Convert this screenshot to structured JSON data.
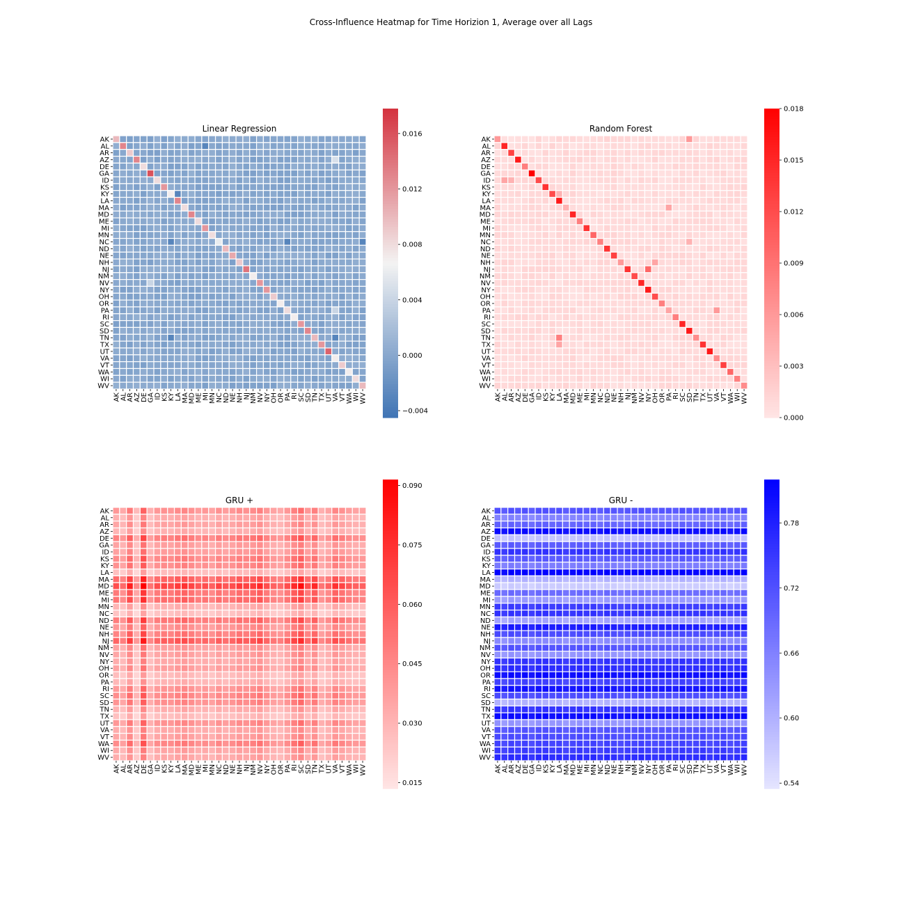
{
  "figure": {
    "title": "Cross-Influence Heatmap for Time Horizion 1, Average over all Lags"
  },
  "colors": {
    "cell_border": "#ffffff",
    "diverging_low": "#3f74b4",
    "diverging_mid": "#f3f3f3",
    "diverging_high": "#d4323e",
    "red_low": "#ffe5e5",
    "red_high": "#ff0000",
    "blue_low": "#e5e5ff",
    "blue_high": "#0000ff"
  },
  "chart_data": [
    {
      "type": "heatmap",
      "id": "lr",
      "title": "Linear Regression",
      "colormap": "diverging-blue-white-red",
      "vmin": -0.0045,
      "vmax": 0.0178,
      "colorbar_ticks": [
        -0.004,
        0.0,
        0.004,
        0.008,
        0.012,
        0.016
      ],
      "colorbar_tick_labels": [
        "−0.004",
        "0.000",
        "0.004",
        "0.008",
        "0.012",
        "0.016"
      ],
      "labels": [
        "AK",
        "AL",
        "AR",
        "AZ",
        "DE",
        "GA",
        "ID",
        "KS",
        "KY",
        "LA",
        "MA",
        "MD",
        "ME",
        "MI",
        "MN",
        "NC",
        "ND",
        "NE",
        "NH",
        "NJ",
        "NM",
        "NV",
        "NY",
        "OH",
        "OR",
        "PA",
        "RI",
        "SC",
        "SD",
        "TN",
        "TX",
        "UT",
        "VA",
        "VT",
        "WA",
        "WI",
        "WV"
      ],
      "pattern": "diagonal-dominant",
      "base_value": 0.0,
      "diagonal": [
        0.01,
        0.013,
        0.009,
        0.013,
        0.008,
        0.016,
        0.008,
        0.012,
        0.007,
        0.013,
        0.008,
        0.013,
        0.008,
        0.012,
        0.008,
        0.006,
        0.01,
        0.011,
        0.009,
        0.014,
        0.007,
        0.012,
        0.012,
        0.009,
        0.007,
        0.008,
        0.007,
        0.012,
        0.013,
        0.01,
        0.012,
        0.015,
        0.007,
        0.009,
        0.007,
        0.008,
        0.01
      ],
      "highlights": [
        {
          "row": "AL",
          "col": "MI",
          "value": -0.003
        },
        {
          "row": "KY",
          "col": "KY",
          "value": 0.007
        },
        {
          "row": "KY",
          "col": "LA",
          "value": -0.003
        },
        {
          "row": "NC",
          "col": "KY",
          "value": -0.003
        },
        {
          "row": "NC",
          "col": "PA",
          "value": -0.003
        },
        {
          "row": "NC",
          "col": "WV",
          "value": -0.003
        },
        {
          "row": "PA",
          "col": "VA",
          "value": 0.004
        },
        {
          "row": "TN",
          "col": "KY",
          "value": -0.003
        },
        {
          "row": "TN",
          "col": "VA",
          "value": -0.003
        },
        {
          "row": "AZ",
          "col": "VA",
          "value": 0.005
        },
        {
          "row": "NV",
          "col": "GA",
          "value": 0.004
        }
      ]
    },
    {
      "type": "heatmap",
      "id": "rf",
      "title": "Random Forest",
      "colormap": "white-red",
      "vmin": 0.0,
      "vmax": 0.018,
      "colorbar_ticks": [
        0.0,
        0.003,
        0.006,
        0.009,
        0.012,
        0.015,
        0.018
      ],
      "colorbar_tick_labels": [
        "0.000",
        "0.003",
        "0.006",
        "0.009",
        "0.012",
        "0.015",
        "0.018"
      ],
      "labels": [
        "AK",
        "AL",
        "AR",
        "AZ",
        "DE",
        "GA",
        "ID",
        "KS",
        "KY",
        "LA",
        "MA",
        "MD",
        "ME",
        "MI",
        "MN",
        "NC",
        "ND",
        "NE",
        "NH",
        "NJ",
        "NM",
        "NV",
        "NY",
        "OH",
        "OR",
        "PA",
        "RI",
        "SC",
        "SD",
        "TN",
        "TX",
        "UT",
        "VA",
        "VT",
        "WA",
        "WI",
        "WV"
      ],
      "pattern": "diagonal-dominant",
      "base_value": 0.0008,
      "diagonal": [
        0.006,
        0.015,
        0.013,
        0.016,
        0.008,
        0.018,
        0.012,
        0.014,
        0.012,
        0.016,
        0.004,
        0.015,
        0.008,
        0.014,
        0.01,
        0.008,
        0.014,
        0.013,
        0.006,
        0.014,
        0.012,
        0.015,
        0.016,
        0.012,
        0.008,
        0.005,
        0.008,
        0.015,
        0.016,
        0.007,
        0.014,
        0.016,
        0.007,
        0.013,
        0.01,
        0.008,
        0.007
      ],
      "highlights": [
        {
          "row": "AK",
          "col": "SD",
          "value": 0.006
        },
        {
          "row": "ID",
          "col": "AL",
          "value": 0.005
        },
        {
          "row": "ID",
          "col": "AR",
          "value": 0.004
        },
        {
          "row": "LA",
          "col": "LA",
          "value": 0.016
        },
        {
          "row": "KY",
          "col": "LA",
          "value": 0.004
        },
        {
          "row": "MA",
          "col": "PA",
          "value": 0.005
        },
        {
          "row": "NC",
          "col": "SD",
          "value": 0.004
        },
        {
          "row": "NH",
          "col": "OH",
          "value": 0.005
        },
        {
          "row": "NJ",
          "col": "NY",
          "value": 0.01
        },
        {
          "row": "PA",
          "col": "VA",
          "value": 0.006
        },
        {
          "row": "TN",
          "col": "LA",
          "value": 0.008
        },
        {
          "row": "TX",
          "col": "LA",
          "value": 0.005
        }
      ]
    },
    {
      "type": "heatmap",
      "id": "gru_pos",
      "title": "GRU +",
      "colormap": "white-red",
      "vmin": 0.0135,
      "vmax": 0.0915,
      "colorbar_ticks": [
        0.015,
        0.03,
        0.045,
        0.06,
        0.075,
        0.09
      ],
      "colorbar_tick_labels": [
        "0.015",
        "0.030",
        "0.045",
        "0.060",
        "0.075",
        "0.090"
      ],
      "labels": [
        "AK",
        "AL",
        "AR",
        "AZ",
        "DE",
        "GA",
        "ID",
        "KS",
        "KY",
        "LA",
        "MA",
        "MD",
        "ME",
        "MI",
        "MN",
        "NC",
        "ND",
        "NE",
        "NH",
        "NJ",
        "NM",
        "NV",
        "NY",
        "OH",
        "OR",
        "PA",
        "RI",
        "SC",
        "SD",
        "TN",
        "TX",
        "UT",
        "VA",
        "VT",
        "WA",
        "WI",
        "WV"
      ],
      "pattern": "row-column-product",
      "row_factors": [
        0.04,
        0.032,
        0.035,
        0.03,
        0.047,
        0.036,
        0.037,
        0.044,
        0.042,
        0.026,
        0.055,
        0.065,
        0.05,
        0.052,
        0.03,
        0.025,
        0.049,
        0.04,
        0.047,
        0.057,
        0.036,
        0.035,
        0.033,
        0.036,
        0.027,
        0.029,
        0.039,
        0.043,
        0.041,
        0.031,
        0.026,
        0.04,
        0.033,
        0.035,
        0.044,
        0.034,
        0.033
      ],
      "col_factors": [
        1.0,
        0.85,
        1.25,
        0.7,
        1.45,
        0.8,
        1.0,
        1.05,
        1.0,
        1.1,
        1.15,
        1.05,
        0.95,
        1.0,
        0.9,
        1.05,
        0.95,
        1.0,
        1.1,
        1.05,
        1.1,
        1.2,
        1.0,
        0.9,
        0.85,
        1.0,
        1.2,
        1.35,
        1.0,
        1.2,
        0.8,
        0.9,
        1.15,
        1.05,
        0.95,
        0.9,
        0.9
      ]
    },
    {
      "type": "heatmap",
      "id": "gru_neg",
      "title": "GRU -",
      "colormap": "white-blue",
      "vmin": 0.535,
      "vmax": 0.82,
      "colorbar_ticks": [
        0.54,
        0.6,
        0.66,
        0.72,
        0.78
      ],
      "colorbar_tick_labels": [
        "0.54",
        "0.60",
        "0.66",
        "0.72",
        "0.78"
      ],
      "labels": [
        "AK",
        "AL",
        "AR",
        "AZ",
        "DE",
        "GA",
        "ID",
        "KS",
        "KY",
        "LA",
        "MA",
        "MD",
        "ME",
        "MI",
        "MN",
        "NC",
        "ND",
        "NE",
        "NH",
        "NJ",
        "NM",
        "NV",
        "NY",
        "OH",
        "OR",
        "PA",
        "RI",
        "SC",
        "SD",
        "TN",
        "TX",
        "UT",
        "VA",
        "VT",
        "WA",
        "WI",
        "WV"
      ],
      "pattern": "row-column-product",
      "row_factors": [
        0.72,
        0.66,
        0.7,
        0.81,
        0.58,
        0.71,
        0.76,
        0.71,
        0.67,
        0.82,
        0.6,
        0.57,
        0.69,
        0.63,
        0.75,
        0.76,
        0.62,
        0.79,
        0.73,
        0.65,
        0.72,
        0.64,
        0.76,
        0.77,
        0.81,
        0.74,
        0.8,
        0.73,
        0.6,
        0.76,
        0.81,
        0.64,
        0.72,
        0.73,
        0.74,
        0.75,
        0.77
      ],
      "col_factors": [
        1.0,
        0.98,
        1.0,
        0.99,
        1.0,
        0.98,
        1.0,
        1.0,
        0.99,
        1.0,
        0.98,
        0.99,
        1.0,
        0.99,
        1.0,
        0.98,
        1.0,
        0.99,
        0.98,
        0.99,
        0.99,
        1.0,
        0.99,
        0.98,
        0.99,
        0.99,
        0.98,
        1.0,
        0.99,
        0.99,
        1.0,
        0.98,
        0.99,
        1.0,
        0.98,
        0.99,
        1.0
      ]
    }
  ]
}
